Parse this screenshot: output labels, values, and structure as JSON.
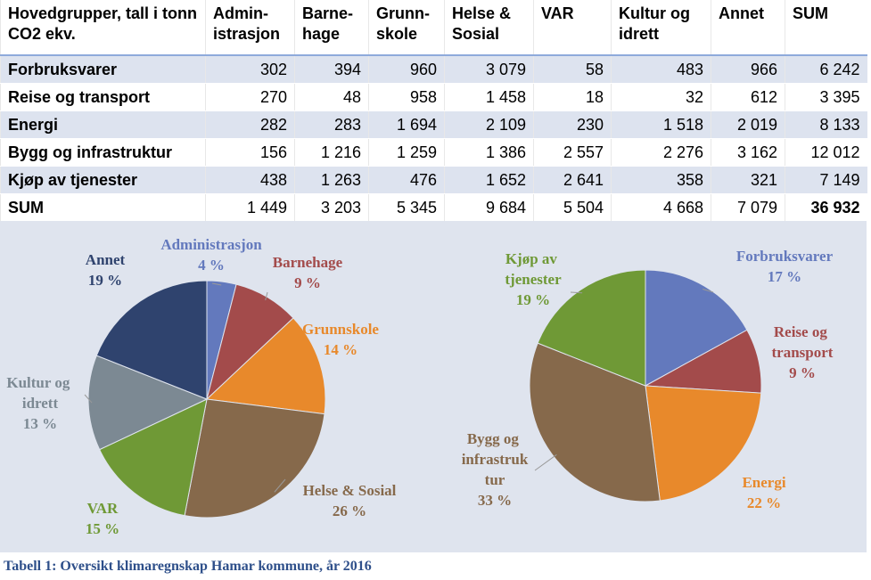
{
  "table": {
    "header": [
      "Hovedgrupper, tall i tonn CO2 ekv.",
      "Admin­istrasjon",
      "Barne­hage",
      "Grunn­skole",
      "Helse & Sosial",
      "VAR",
      "Kultur og idrett",
      "Annet",
      "SUM"
    ],
    "rows": [
      [
        "Forbruksvarer",
        "302",
        "394",
        "960",
        "3 079",
        "58",
        "483",
        "966",
        "6 242"
      ],
      [
        "Reise og transport",
        "270",
        "48",
        "958",
        "1 458",
        "18",
        "32",
        "612",
        "3 395"
      ],
      [
        "Energi",
        "282",
        "283",
        "1 694",
        "2 109",
        "230",
        "1 518",
        "2 019",
        "8 133"
      ],
      [
        "Bygg og infrastruktur",
        "156",
        "1 216",
        "1 259",
        "1 386",
        "2 557",
        "2 276",
        "3 162",
        "12 012"
      ],
      [
        "Kjøp av tjenester",
        "438",
        "1 263",
        "476",
        "1 652",
        "2 641",
        "358",
        "321",
        "7 149"
      ],
      [
        "SUM",
        "1 449",
        "3 203",
        "5 345",
        "9 684",
        "5 504",
        "4 668",
        "7 079",
        "36 932"
      ]
    ]
  },
  "chart_data": [
    {
      "type": "pie",
      "categories": [
        "Administrasjon",
        "Barnehage",
        "Grunnskole",
        "Helse & Sosial",
        "VAR",
        "Kultur og idrett",
        "Annet"
      ],
      "values": [
        4,
        9,
        14,
        26,
        15,
        13,
        19
      ],
      "value_labels": [
        "4 %",
        "9 %",
        "14 %",
        "26 %",
        "15 %",
        "13 %",
        "19 %"
      ],
      "colors": [
        "#6379bd",
        "#a34b4b",
        "#e8892b",
        "#86694b",
        "#6f9936",
        "#7c8993",
        "#2f436e"
      ]
    },
    {
      "type": "pie",
      "categories": [
        "Forbruksvarer",
        "Reise og transport",
        "Energi",
        "Bygg og infrastruktur",
        "Kjøp av tjenester"
      ],
      "values": [
        17,
        9,
        22,
        33,
        19
      ],
      "value_labels": [
        "17 %",
        "9 %",
        "22 %",
        "33 %",
        "19 %"
      ],
      "colors": [
        "#6379bd",
        "#a34b4b",
        "#e8892b",
        "#86694b",
        "#6f9936"
      ]
    }
  ],
  "caption": "Tabell 1: Oversikt klimaregnskap Hamar kommune, år 2016"
}
